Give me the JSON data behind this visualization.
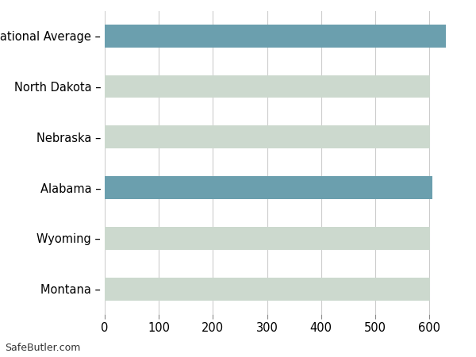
{
  "categories": [
    "Montana",
    "Wyoming",
    "Alabama",
    "Nebraska",
    "North Dakota",
    "National Average"
  ],
  "values": [
    601,
    601,
    606,
    601,
    601,
    630
  ],
  "bar_colors": [
    "#ccd9ce",
    "#ccd9ce",
    "#6b9fae",
    "#ccd9ce",
    "#ccd9ce",
    "#6b9fae"
  ],
  "background_color": "#ffffff",
  "grid_color": "#cccccc",
  "xlim": [
    0,
    660
  ],
  "xticks": [
    0,
    100,
    200,
    300,
    400,
    500,
    600
  ],
  "tick_labels": [
    "0",
    "100",
    "200",
    "300",
    "400",
    "500",
    "600"
  ],
  "y_labels": [
    "Montana –",
    "Wyoming –",
    "Alabama –",
    "Nebraska –",
    "North Dakota –",
    "National Average –"
  ],
  "footer_text": "SafeButler.com",
  "bar_height": 0.45
}
